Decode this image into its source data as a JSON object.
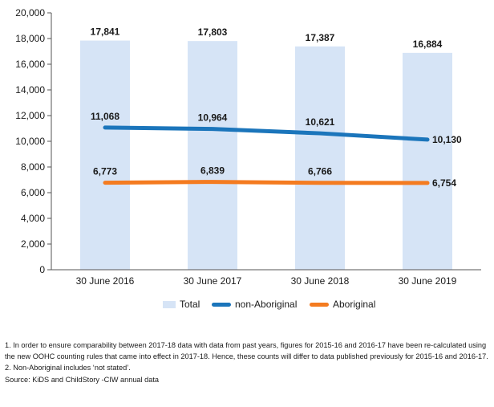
{
  "chart_data": {
    "type": "bar",
    "title": "",
    "xlabel": "",
    "ylabel": "",
    "ylim": [
      0,
      20000
    ],
    "yticks": [
      0,
      2000,
      4000,
      6000,
      8000,
      10000,
      12000,
      14000,
      16000,
      18000,
      20000
    ],
    "ytick_labels": [
      "0",
      "2,000",
      "4,000",
      "6,000",
      "8,000",
      "10,000",
      "12,000",
      "14,000",
      "16,000",
      "18,000",
      "20,000"
    ],
    "categories": [
      "30 June 2016",
      "30 June 2017",
      "30 June 2018",
      "30 June 2019"
    ],
    "series": [
      {
        "name": "Total",
        "kind": "bar",
        "color": "#d6e4f6",
        "values": [
          17841,
          17803,
          17387,
          16884
        ],
        "labels": [
          "17,841",
          "17,803",
          "17,387",
          "16,884"
        ]
      },
      {
        "name": "non-Aboriginal",
        "kind": "line",
        "color": "#1b75bb",
        "values": [
          11068,
          10964,
          10621,
          10130
        ],
        "labels": [
          "11,068",
          "10,964",
          "10,621",
          "10,130"
        ]
      },
      {
        "name": "Aboriginal",
        "kind": "line",
        "color": "#f47b20",
        "values": [
          6773,
          6839,
          6766,
          6754
        ],
        "labels": [
          "6,773",
          "6,839",
          "6,766",
          "6,754"
        ]
      }
    ],
    "legend_position": "bottom"
  },
  "notes": {
    "note1": "1. In order to ensure comparability between 2017-18 data with data from past years, figures for 2015-16 and 2016-17 have been re-calculated using the new OOHC counting rules that came into effect in 2017-18. Hence, these counts will differ to data published previously for 2015-16 and 2016-17.",
    "note2": "2. Non-Aboriginal includes ‘not stated’.",
    "source": "Source: KiDS and ChildStory -CIW annual data"
  }
}
